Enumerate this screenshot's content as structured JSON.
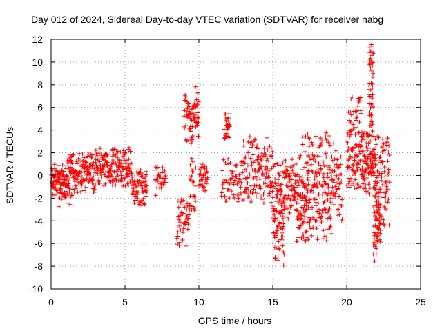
{
  "chart_data": {
    "type": "scatter",
    "title": "Day 012 of 2024, Sidereal Day-to-day VTEC variation (SDTVAR) for receiver nabg",
    "xlabel": "GPS time / hours",
    "ylabel": "SDTVAR / TECUs",
    "xlim": [
      0,
      25
    ],
    "ylim": [
      -10,
      12
    ],
    "xticks": [
      0,
      5,
      10,
      15,
      20,
      25
    ],
    "yticks": [
      -10,
      -8,
      -6,
      -4,
      -2,
      0,
      2,
      4,
      6,
      8,
      10,
      12
    ],
    "grid": true,
    "marker": "+",
    "color": "#ff0000",
    "series": [
      {
        "name": "SDTVAR",
        "clusters": [
          {
            "x_start": 0.0,
            "x_end": 1.0,
            "y_min": -2.0,
            "y_max": 1.0,
            "count": 90
          },
          {
            "x_start": 0.5,
            "x_end": 1.5,
            "y_min": -3.3,
            "y_max": -0.5,
            "count": 20
          },
          {
            "x_start": 1.0,
            "x_end": 3.0,
            "y_min": -1.5,
            "y_max": 2.0,
            "count": 160
          },
          {
            "x_start": 3.0,
            "x_end": 5.5,
            "y_min": -1.0,
            "y_max": 2.5,
            "count": 180
          },
          {
            "x_start": 5.5,
            "x_end": 6.5,
            "y_min": -2.7,
            "y_max": 0.5,
            "count": 70
          },
          {
            "x_start": 7.0,
            "x_end": 7.8,
            "y_min": -2.0,
            "y_max": 0.8,
            "count": 35
          },
          {
            "x_start": 8.5,
            "x_end": 9.3,
            "y_min": -6.3,
            "y_max": -2.0,
            "count": 45
          },
          {
            "x_start": 9.0,
            "x_end": 9.5,
            "y_min": 2.5,
            "y_max": 7.2,
            "count": 40
          },
          {
            "x_start": 9.5,
            "x_end": 10.0,
            "y_min": 3.0,
            "y_max": 8.1,
            "count": 45
          },
          {
            "x_start": 9.3,
            "x_end": 9.8,
            "y_min": -3.8,
            "y_max": 2.0,
            "count": 30
          },
          {
            "x_start": 10.0,
            "x_end": 10.6,
            "y_min": -1.5,
            "y_max": 1.0,
            "count": 35
          },
          {
            "x_start": 11.7,
            "x_end": 12.1,
            "y_min": 3.0,
            "y_max": 5.5,
            "count": 30
          },
          {
            "x_start": 11.5,
            "x_end": 13.0,
            "y_min": -2.5,
            "y_max": 1.5,
            "count": 60
          },
          {
            "x_start": 13.0,
            "x_end": 15.0,
            "y_min": -2.5,
            "y_max": 3.5,
            "count": 140
          },
          {
            "x_start": 15.0,
            "x_end": 15.8,
            "y_min": -8.1,
            "y_max": 1.5,
            "count": 110
          },
          {
            "x_start": 15.8,
            "x_end": 17.0,
            "y_min": -4.0,
            "y_max": 2.0,
            "count": 90
          },
          {
            "x_start": 16.5,
            "x_end": 17.5,
            "y_min": -6.0,
            "y_max": -1.0,
            "count": 40
          },
          {
            "x_start": 17.0,
            "x_end": 19.0,
            "y_min": -6.0,
            "y_max": 3.8,
            "count": 200
          },
          {
            "x_start": 19.0,
            "x_end": 19.7,
            "y_min": -4.0,
            "y_max": 3.5,
            "count": 50
          },
          {
            "x_start": 20.0,
            "x_end": 21.0,
            "y_min": -1.5,
            "y_max": 7.0,
            "count": 110
          },
          {
            "x_start": 21.0,
            "x_end": 22.0,
            "y_min": -2.0,
            "y_max": 4.0,
            "count": 120
          },
          {
            "x_start": 21.5,
            "x_end": 21.8,
            "y_min": 3.0,
            "y_max": 11.6,
            "count": 50
          },
          {
            "x_start": 21.8,
            "x_end": 22.3,
            "y_min": -7.6,
            "y_max": -1.0,
            "count": 60
          },
          {
            "x_start": 22.0,
            "x_end": 22.9,
            "y_min": -4.5,
            "y_max": 3.5,
            "count": 80
          }
        ]
      }
    ]
  }
}
